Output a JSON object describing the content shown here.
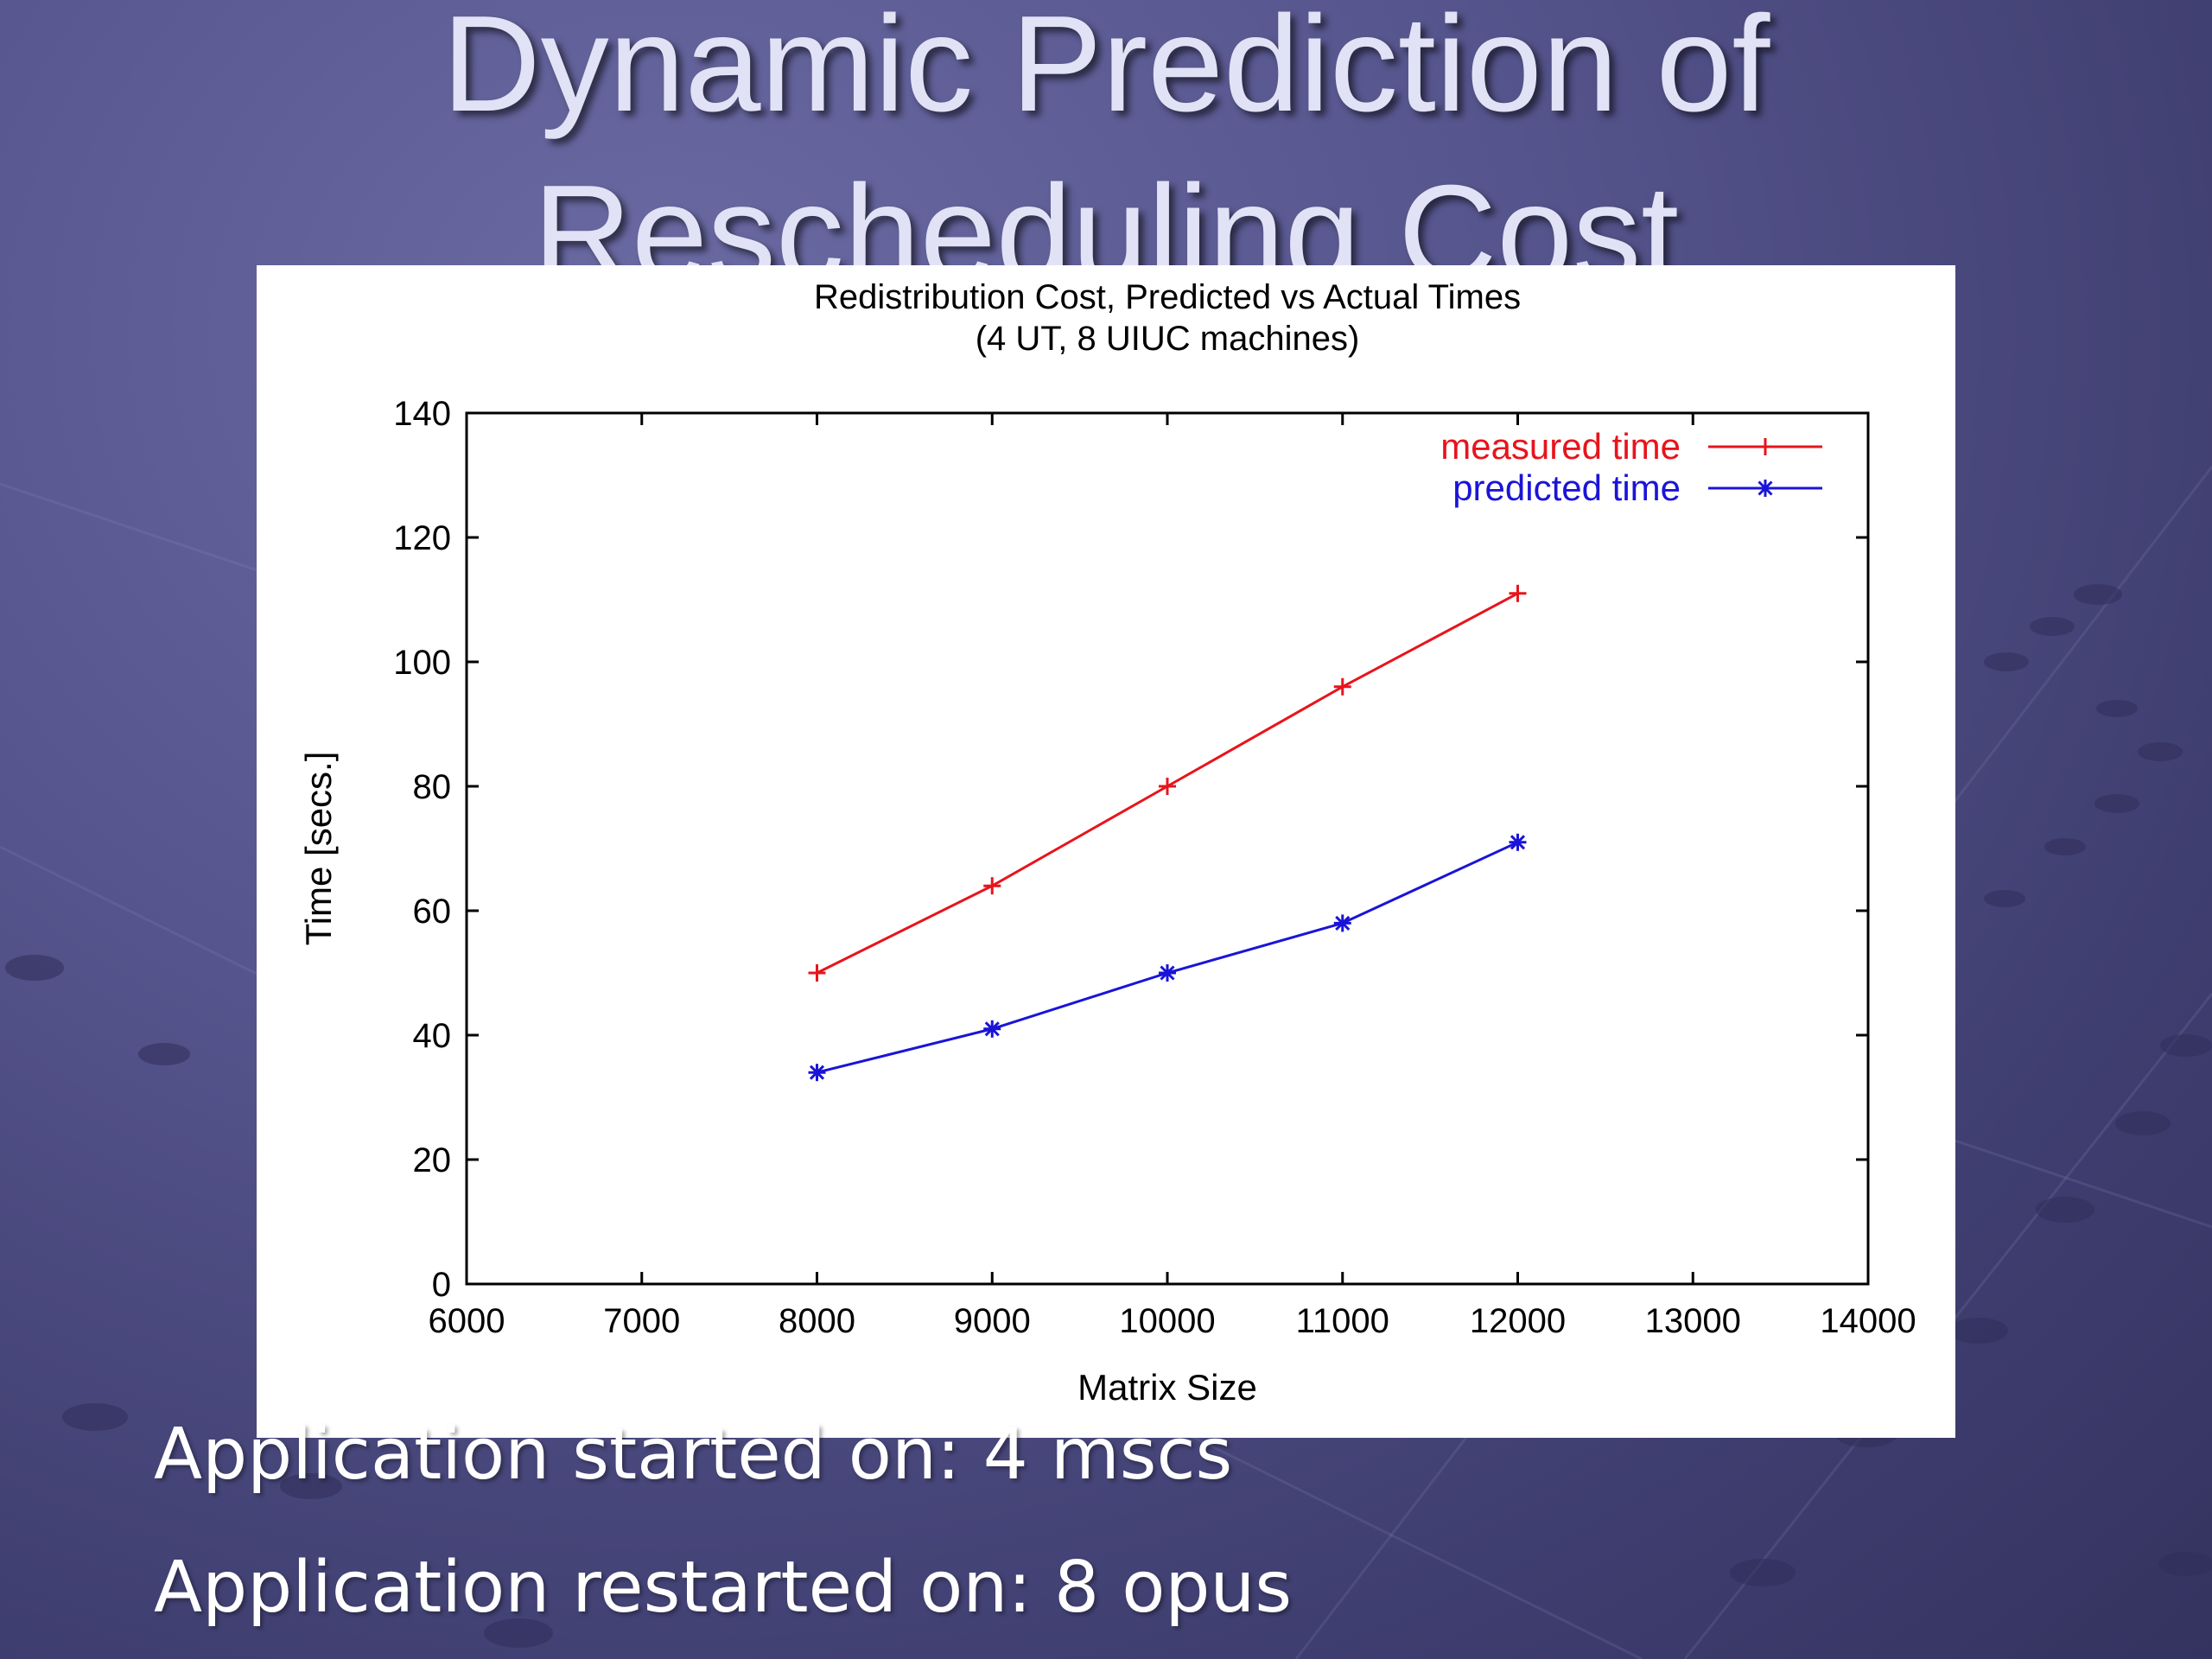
{
  "slide": {
    "title_line_1": "Dynamic Prediction of",
    "title_line_2": "Rescheduling Cost",
    "bullets": [
      "Application started on: 4 mscs",
      "Application restarted on: 8 opus"
    ]
  },
  "colors": {
    "measured": "#e8141c",
    "predicted": "#1a14d8",
    "axis": "#000000"
  },
  "chart_data": {
    "type": "line",
    "title": "Redistribution Cost, Predicted vs Actual Times",
    "subtitle": "(4 UT, 8 UIUC machines)",
    "xlabel": "Matrix Size",
    "ylabel": "Time [secs.]",
    "xlim": [
      6000,
      14000
    ],
    "ylim": [
      0,
      140
    ],
    "xticks": [
      6000,
      7000,
      8000,
      9000,
      10000,
      11000,
      12000,
      13000,
      14000
    ],
    "yticks": [
      0,
      20,
      40,
      60,
      80,
      100,
      120,
      140
    ],
    "legend_position": "top-right",
    "grid": false,
    "x": [
      8000,
      9000,
      10000,
      11000,
      12000
    ],
    "series": [
      {
        "name": "measured time",
        "marker": "plus",
        "values": [
          50,
          64,
          80,
          96,
          111
        ]
      },
      {
        "name": "predicted time",
        "marker": "asterisk",
        "values": [
          34,
          41,
          50,
          58,
          71
        ]
      }
    ]
  }
}
